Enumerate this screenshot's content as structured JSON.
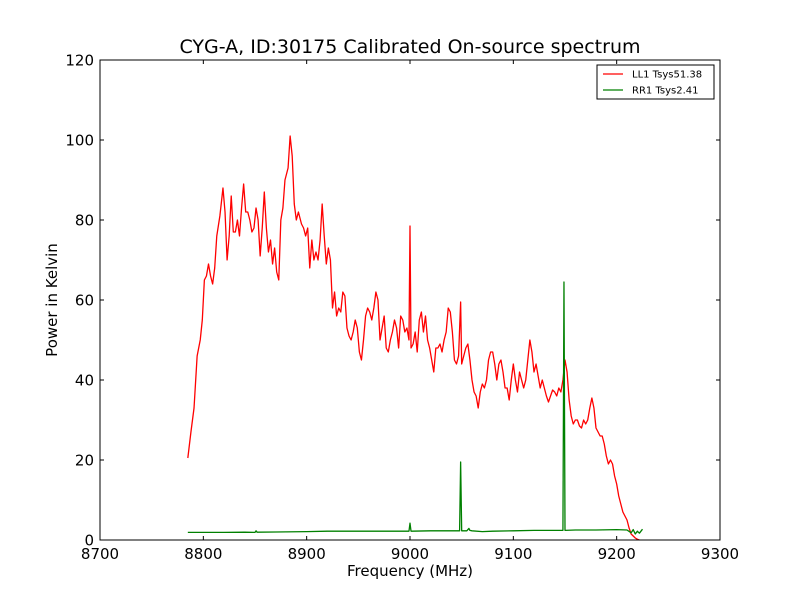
{
  "chart_data": {
    "type": "line",
    "title": "CYG-A, ID:30175 Calibrated On-source spectrum",
    "xlabel": "Frequency (MHz)",
    "ylabel": "Power in Kelvin",
    "xlim": [
      8700,
      9300
    ],
    "ylim": [
      0,
      120
    ],
    "xticks": [
      8700,
      8800,
      8900,
      9000,
      9100,
      9200,
      9300
    ],
    "yticks": [
      0,
      20,
      40,
      60,
      80,
      100,
      120
    ],
    "grid": false,
    "legend_position": "top-right",
    "series": [
      {
        "name": "LL1 Tsys51.38",
        "color": "#ff0000",
        "points": [
          [
            8785,
            20.5
          ],
          [
            8788,
            27
          ],
          [
            8791,
            33
          ],
          [
            8794,
            46
          ],
          [
            8797,
            50
          ],
          [
            8799,
            55
          ],
          [
            8801,
            65
          ],
          [
            8803,
            66
          ],
          [
            8805,
            69
          ],
          [
            8807,
            66
          ],
          [
            8809,
            64
          ],
          [
            8811,
            68
          ],
          [
            8813,
            76
          ],
          [
            8816,
            81
          ],
          [
            8819,
            88
          ],
          [
            8821,
            82
          ],
          [
            8823,
            70
          ],
          [
            8825,
            76
          ],
          [
            8827,
            86
          ],
          [
            8829,
            77
          ],
          [
            8831,
            77
          ],
          [
            8833,
            80
          ],
          [
            8835,
            76
          ],
          [
            8837,
            83
          ],
          [
            8839,
            89
          ],
          [
            8841,
            82
          ],
          [
            8843,
            82
          ],
          [
            8845,
            80
          ],
          [
            8847,
            77
          ],
          [
            8849,
            78
          ],
          [
            8851,
            83
          ],
          [
            8853,
            80
          ],
          [
            8855,
            71
          ],
          [
            8857,
            78
          ],
          [
            8859,
            87
          ],
          [
            8861,
            78
          ],
          [
            8863,
            72
          ],
          [
            8865,
            75
          ],
          [
            8867,
            69
          ],
          [
            8869,
            73
          ],
          [
            8871,
            67
          ],
          [
            8873,
            65
          ],
          [
            8875,
            80
          ],
          [
            8877,
            83
          ],
          [
            8879,
            90
          ],
          [
            8882,
            93
          ],
          [
            8884,
            101
          ],
          [
            8886,
            96
          ],
          [
            8888,
            84
          ],
          [
            8890,
            80
          ],
          [
            8892,
            82
          ],
          [
            8895,
            79
          ],
          [
            8897,
            78
          ],
          [
            8899,
            76
          ],
          [
            8901,
            78
          ],
          [
            8903,
            68
          ],
          [
            8905,
            75
          ],
          [
            8907,
            70
          ],
          [
            8909,
            72
          ],
          [
            8911,
            70
          ],
          [
            8913,
            75
          ],
          [
            8915,
            84
          ],
          [
            8917,
            76
          ],
          [
            8919,
            69
          ],
          [
            8921,
            73
          ],
          [
            8923,
            70
          ],
          [
            8925,
            58
          ],
          [
            8927,
            62
          ],
          [
            8929,
            56
          ],
          [
            8931,
            58
          ],
          [
            8933,
            57
          ],
          [
            8935,
            62
          ],
          [
            8937,
            61
          ],
          [
            8939,
            53
          ],
          [
            8941,
            51
          ],
          [
            8943,
            50
          ],
          [
            8945,
            52
          ],
          [
            8947,
            55
          ],
          [
            8949,
            53
          ],
          [
            8951,
            47
          ],
          [
            8953,
            45
          ],
          [
            8955,
            50
          ],
          [
            8957,
            56
          ],
          [
            8959,
            58
          ],
          [
            8961,
            57
          ],
          [
            8963,
            55
          ],
          [
            8965,
            58
          ],
          [
            8967,
            62
          ],
          [
            8969,
            60
          ],
          [
            8971,
            50
          ],
          [
            8973,
            53
          ],
          [
            8975,
            56
          ],
          [
            8977,
            48
          ],
          [
            8979,
            47
          ],
          [
            8981,
            50
          ],
          [
            8983,
            52
          ],
          [
            8985,
            55
          ],
          [
            8987,
            53
          ],
          [
            8989,
            48
          ],
          [
            8991,
            56
          ],
          [
            8993,
            55
          ],
          [
            8995,
            52
          ],
          [
            8997,
            53
          ],
          [
            8999,
            50
          ],
          [
            9000,
            78.5
          ],
          [
            9001,
            48
          ],
          [
            9003,
            49
          ],
          [
            9005,
            52
          ],
          [
            9007,
            47
          ],
          [
            9009,
            55
          ],
          [
            9011,
            57
          ],
          [
            9013,
            52
          ],
          [
            9015,
            56
          ],
          [
            9017,
            50
          ],
          [
            9019,
            48
          ],
          [
            9021,
            45
          ],
          [
            9023,
            42
          ],
          [
            9025,
            48
          ],
          [
            9027,
            48
          ],
          [
            9029,
            49
          ],
          [
            9031,
            47
          ],
          [
            9033,
            50
          ],
          [
            9035,
            52
          ],
          [
            9037,
            58
          ],
          [
            9039,
            57
          ],
          [
            9041,
            52
          ],
          [
            9043,
            45
          ],
          [
            9045,
            44
          ],
          [
            9047,
            46
          ],
          [
            9049,
            59.5
          ],
          [
            9050,
            44
          ],
          [
            9052,
            46
          ],
          [
            9054,
            48
          ],
          [
            9056,
            49
          ],
          [
            9058,
            45
          ],
          [
            9060,
            40
          ],
          [
            9062,
            37
          ],
          [
            9064,
            36
          ],
          [
            9066,
            33
          ],
          [
            9068,
            37
          ],
          [
            9070,
            39
          ],
          [
            9072,
            38
          ],
          [
            9074,
            40
          ],
          [
            9076,
            45
          ],
          [
            9078,
            47
          ],
          [
            9080,
            47
          ],
          [
            9082,
            44
          ],
          [
            9084,
            40
          ],
          [
            9086,
            44
          ],
          [
            9088,
            45
          ],
          [
            9090,
            42
          ],
          [
            9092,
            38
          ],
          [
            9094,
            38
          ],
          [
            9096,
            35
          ],
          [
            9098,
            40
          ],
          [
            9100,
            44
          ],
          [
            9102,
            40
          ],
          [
            9104,
            37
          ],
          [
            9106,
            42
          ],
          [
            9108,
            40
          ],
          [
            9110,
            38
          ],
          [
            9112,
            40
          ],
          [
            9114,
            45
          ],
          [
            9116,
            50
          ],
          [
            9118,
            47
          ],
          [
            9120,
            42
          ],
          [
            9122,
            44
          ],
          [
            9124,
            41
          ],
          [
            9126,
            38
          ],
          [
            9128,
            40
          ],
          [
            9130,
            38
          ],
          [
            9132,
            36
          ],
          [
            9134,
            34.5
          ],
          [
            9136,
            36
          ],
          [
            9138,
            37.5
          ],
          [
            9140,
            37
          ],
          [
            9142,
            36
          ],
          [
            9144,
            38
          ],
          [
            9146,
            37
          ],
          [
            9148,
            40
          ],
          [
            9150,
            45
          ],
          [
            9152,
            42
          ],
          [
            9154,
            35
          ],
          [
            9156,
            31
          ],
          [
            9158,
            29
          ],
          [
            9160,
            30
          ],
          [
            9162,
            30
          ],
          [
            9164,
            28.5
          ],
          [
            9166,
            28
          ],
          [
            9168,
            30
          ],
          [
            9170,
            29
          ],
          [
            9172,
            30
          ],
          [
            9174,
            33
          ],
          [
            9176,
            35.5
          ],
          [
            9178,
            33
          ],
          [
            9180,
            28
          ],
          [
            9182,
            27
          ],
          [
            9184,
            26
          ],
          [
            9186,
            26
          ],
          [
            9188,
            24
          ],
          [
            9190,
            21
          ],
          [
            9192,
            19
          ],
          [
            9194,
            20
          ],
          [
            9196,
            19
          ],
          [
            9198,
            16
          ],
          [
            9200,
            14
          ],
          [
            9202,
            11
          ],
          [
            9204,
            9
          ],
          [
            9206,
            7
          ],
          [
            9208,
            6
          ],
          [
            9210,
            5
          ],
          [
            9212,
            3
          ],
          [
            9214,
            1.5
          ],
          [
            9216,
            1
          ],
          [
            9218,
            0.5
          ],
          [
            9220,
            0.2
          ],
          [
            9222,
            0
          ]
        ]
      },
      {
        "name": "RR1 Tsys2.41",
        "color": "#008000",
        "points": [
          [
            8785,
            1.9
          ],
          [
            8800,
            1.9
          ],
          [
            8820,
            1.9
          ],
          [
            8840,
            1.95
          ],
          [
            8850,
            1.9
          ],
          [
            8851,
            2.3
          ],
          [
            8852,
            1.95
          ],
          [
            8870,
            2.0
          ],
          [
            8900,
            2.1
          ],
          [
            8920,
            2.2
          ],
          [
            8950,
            2.2
          ],
          [
            8980,
            2.2
          ],
          [
            8999,
            2.2
          ],
          [
            9000,
            4.2
          ],
          [
            9001,
            2.2
          ],
          [
            9020,
            2.3
          ],
          [
            9048,
            2.3
          ],
          [
            9049,
            19.5
          ],
          [
            9050,
            2.3
          ],
          [
            9055,
            2.3
          ],
          [
            9057,
            2.9
          ],
          [
            9058,
            2.4
          ],
          [
            9060,
            2.3
          ],
          [
            9070,
            2.1
          ],
          [
            9080,
            2.2
          ],
          [
            9100,
            2.3
          ],
          [
            9120,
            2.4
          ],
          [
            9148,
            2.4
          ],
          [
            9149,
            64.5
          ],
          [
            9150,
            2.4
          ],
          [
            9160,
            2.5
          ],
          [
            9180,
            2.5
          ],
          [
            9200,
            2.6
          ],
          [
            9210,
            2.5
          ],
          [
            9214,
            1.8
          ],
          [
            9216,
            2.6
          ],
          [
            9218,
            1.5
          ],
          [
            9220,
            2.2
          ],
          [
            9222,
            1.7
          ],
          [
            9225,
            2.7
          ]
        ]
      }
    ]
  }
}
